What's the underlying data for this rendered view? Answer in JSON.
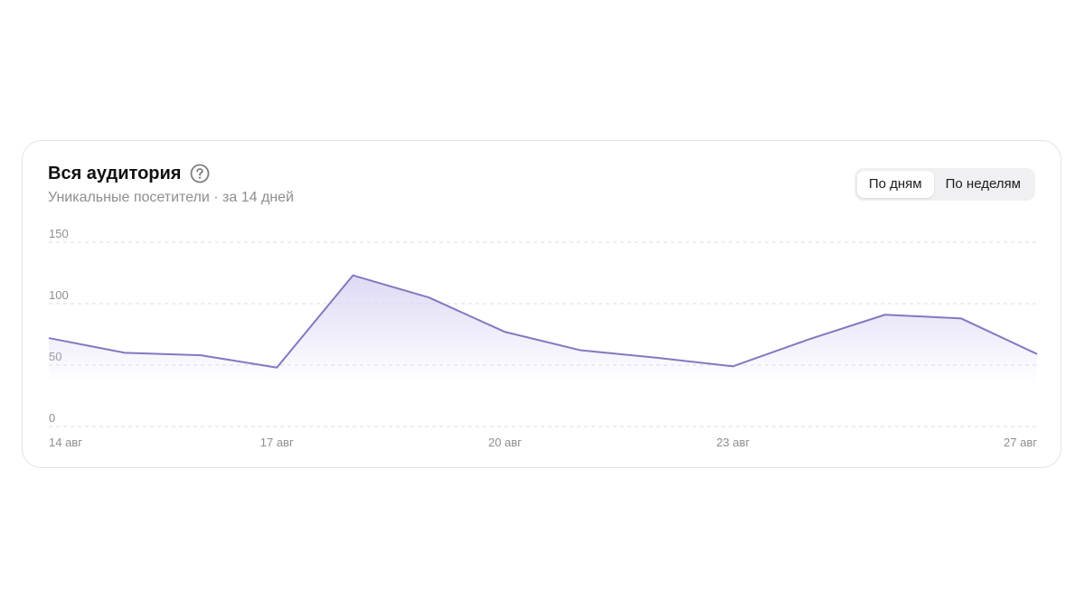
{
  "card": {
    "title": "Вся аудитория",
    "subtitle": "Уникальные посетители · за 14 дней",
    "help_icon": "question-circle-icon"
  },
  "toggle": {
    "options": [
      {
        "label": "По дням",
        "active": true
      },
      {
        "label": "По неделям",
        "active": false
      }
    ]
  },
  "colors": {
    "line": "#8279c0",
    "fill_top": "#d8d3f3",
    "grid": "#dcdce0",
    "tick": "#8e8e93"
  },
  "chart_data": {
    "type": "area",
    "title": "Вся аудитория",
    "subtitle": "Уникальные посетители · за 14 дней",
    "xlabel": "",
    "ylabel": "",
    "ylim": [
      0,
      150
    ],
    "yticks": [
      0,
      50,
      100,
      150
    ],
    "x": [
      "14 авг",
      "15 авг",
      "16 авг",
      "17 авг",
      "18 авг",
      "19 авг",
      "20 авг",
      "21 авг",
      "22 авг",
      "23 авг",
      "24 авг",
      "25 авг",
      "26 авг",
      "27 авг"
    ],
    "xtick_labels": [
      "14 авг",
      "17 авг",
      "20 авг",
      "23 авг",
      "27 авг"
    ],
    "series": [
      {
        "values": [
          72,
          60,
          58,
          48,
          123,
          105,
          77,
          62,
          56,
          49,
          71,
          91,
          88,
          59
        ]
      }
    ],
    "grid": true,
    "legend": "none"
  }
}
